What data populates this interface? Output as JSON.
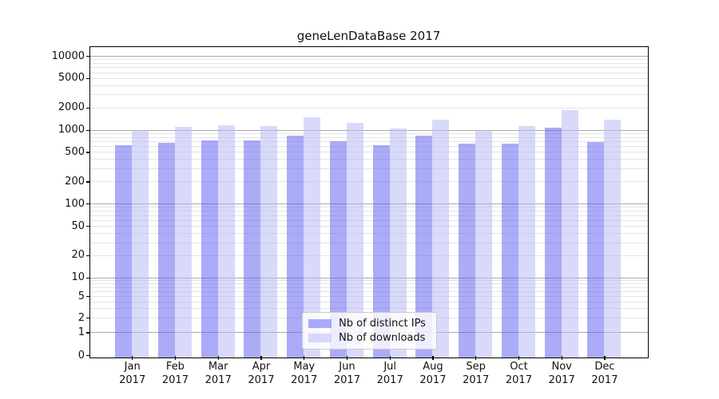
{
  "chart_data": {
    "type": "bar",
    "title": "geneLenDataBase 2017",
    "categories": [
      "Jan 2017",
      "Feb 2017",
      "Mar 2017",
      "Apr 2017",
      "May 2017",
      "Jun 2017",
      "Jul 2017",
      "Aug 2017",
      "Sep 2017",
      "Oct 2017",
      "Nov 2017",
      "Dec 2017"
    ],
    "series": [
      {
        "name": "Nb of distinct IPs",
        "color": "#5757f1",
        "alpha": 0.5,
        "values": [
          660,
          715,
          755,
          755,
          890,
          745,
          660,
          890,
          695,
          685,
          1125,
          730
        ]
      },
      {
        "name": "Nb of downloads",
        "color": "#b3b3f3",
        "alpha": 0.5,
        "values": [
          1045,
          1170,
          1220,
          1200,
          1555,
          1310,
          1105,
          1445,
          1055,
          1200,
          1960,
          1445
        ]
      }
    ],
    "xlabel": "",
    "ylabel": "",
    "yscale": "symlog",
    "yticks": [
      0,
      1,
      2,
      5,
      10,
      20,
      50,
      100,
      200,
      500,
      1000,
      2000,
      5000,
      10000
    ],
    "ylim": [
      0,
      13000
    ],
    "grid": true,
    "legend_position": "lower center",
    "colors": {
      "grid_major": "#ababab",
      "grid_minor": "#e4e4e4",
      "spine": "#000000",
      "background": "#ffffff"
    }
  }
}
